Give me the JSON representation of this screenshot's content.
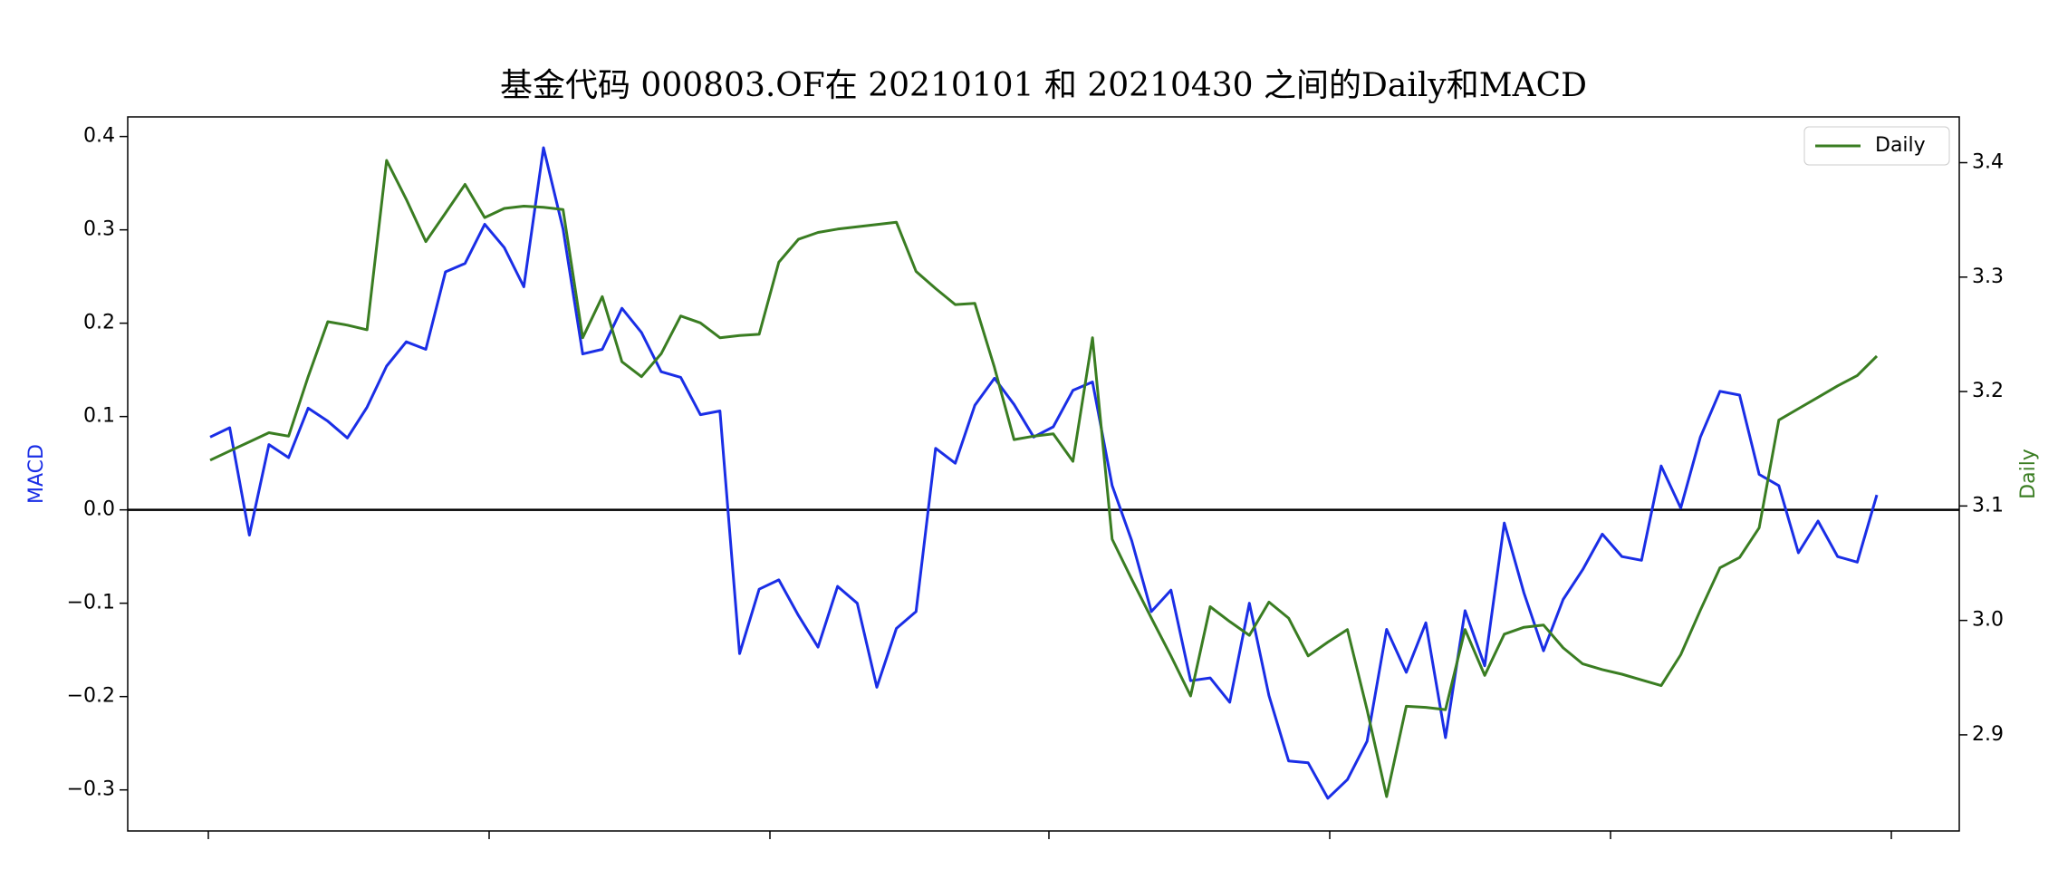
{
  "chart_data": {
    "type": "line",
    "title": "基金代码 000803.OF在 20210101 和 20210430 之间的Daily和MACD",
    "y_label": "MACD",
    "y2_label": "Daily",
    "categories": [
      null,
      null,
      null,
      null,
      null,
      null,
      null,
      null,
      null,
      null,
      null,
      null,
      null,
      null,
      null,
      null,
      null,
      null,
      null,
      null,
      null,
      null,
      null,
      null,
      null,
      null,
      null,
      null,
      null,
      null,
      null,
      null,
      null,
      null,
      null,
      null,
      null,
      null,
      null,
      null,
      null,
      null,
      null,
      null,
      null,
      null,
      null,
      null,
      null,
      null,
      null,
      null,
      null,
      null,
      null,
      null,
      null,
      null,
      null,
      null,
      null,
      null,
      null,
      null,
      null,
      null,
      null,
      null,
      null,
      null,
      null,
      null,
      null,
      null,
      null,
      null,
      null,
      null,
      null,
      null,
      null,
      null,
      null,
      null,
      null,
      null
    ],
    "series": [
      {
        "name": "MACD",
        "color": "#1a2ee6",
        "in_legend": false,
        "values": [
          0.078,
          0.088,
          -0.027,
          0.07,
          0.056,
          0.109,
          0.095,
          0.077,
          0.11,
          0.154,
          0.18,
          0.172,
          0.255,
          0.264,
          0.306,
          0.281,
          0.239,
          0.388,
          0.301,
          0.167,
          0.172,
          0.216,
          0.19,
          0.148,
          0.142,
          0.102,
          0.106,
          -0.154,
          -0.085,
          -0.075,
          -0.113,
          -0.147,
          -0.082,
          -0.1,
          -0.19,
          -0.127,
          -0.109,
          0.066,
          0.05,
          0.112,
          0.141,
          0.113,
          0.078,
          0.089,
          0.128,
          0.137,
          0.026,
          -0.033,
          -0.109,
          -0.086,
          -0.183,
          -0.18,
          -0.206,
          -0.1,
          -0.199,
          -0.269,
          -0.271,
          -0.309,
          -0.289,
          -0.248,
          -0.128,
          -0.174,
          -0.121,
          -0.244,
          -0.108,
          -0.167,
          -0.014,
          -0.089,
          -0.151,
          -0.096,
          -0.064,
          -0.026,
          -0.05,
          -0.054,
          0.047,
          0.002,
          0.078,
          0.127,
          0.123,
          0.038,
          0.026,
          -0.046,
          -0.012,
          -0.05,
          -0.056,
          0.016
        ]
      },
      {
        "name": "Daily",
        "color": "#3a7d22",
        "axis": "y2",
        "in_legend": true,
        "values": [
          3.14,
          3.148,
          3.156,
          3.164,
          3.161,
          3.213,
          3.261,
          3.258,
          3.254,
          3.402,
          3.368,
          3.331,
          3.356,
          3.381,
          3.352,
          3.36,
          3.362,
          3.361,
          3.359,
          3.247,
          3.283,
          3.226,
          3.213,
          3.233,
          3.266,
          3.26,
          3.247,
          3.249,
          3.25,
          3.313,
          3.333,
          3.339,
          3.342,
          3.344,
          3.346,
          3.348,
          3.305,
          3.29,
          3.276,
          3.277,
          3.221,
          3.158,
          3.161,
          3.163,
          3.139,
          3.247,
          3.071,
          3.036,
          3.002,
          2.969,
          2.934,
          3.012,
          2.999,
          2.987,
          3.016,
          3.002,
          2.969,
          2.981,
          2.992,
          2.922,
          2.846,
          2.925,
          2.924,
          2.922,
          2.992,
          2.952,
          2.988,
          2.994,
          2.996,
          2.976,
          2.962,
          2.957,
          2.953,
          2.948,
          2.943,
          2.97,
          3.009,
          3.046,
          3.055,
          3.081,
          3.175,
          3.185,
          3.195,
          3.205,
          3.214,
          3.231
        ]
      }
    ],
    "ylim": [
      -0.344,
      0.421
    ],
    "yticks": [
      {
        "value": -0.3,
        "label": "−0.3"
      },
      {
        "value": -0.2,
        "label": "−0.2"
      },
      {
        "value": -0.1,
        "label": "−0.1"
      },
      {
        "value": 0,
        "label": "0.0"
      },
      0.1,
      0.2,
      0.3,
      0.4
    ],
    "y2lim": [
      2.816,
      3.44
    ],
    "y2ticks": [
      2.9,
      {
        "value": 3,
        "label": "3.0"
      },
      3.1,
      3.2,
      3.3,
      3.4
    ],
    "hline": 0,
    "hline_color": "#000000",
    "legend": "upper right"
  }
}
